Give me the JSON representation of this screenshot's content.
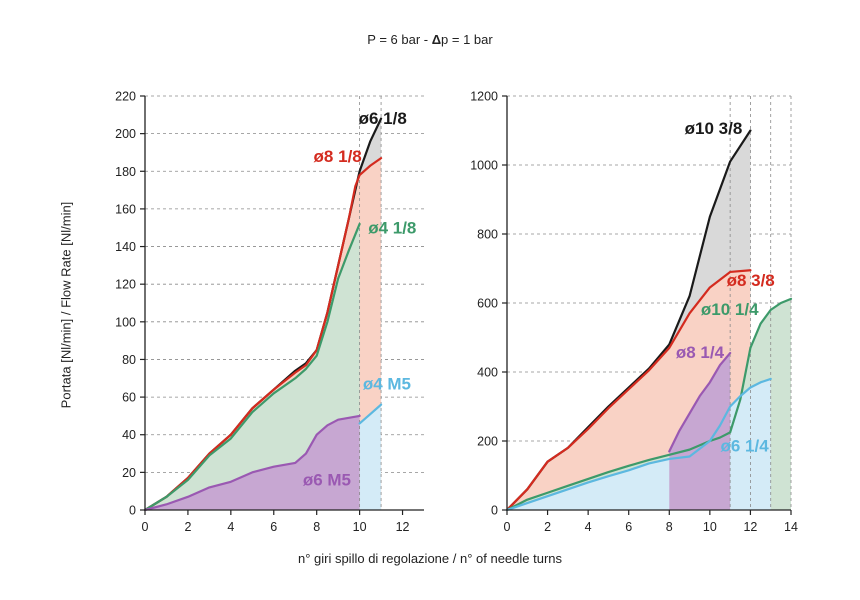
{
  "header": {
    "pressure": "P = 6 bar - ",
    "delta_symbol": "Δ",
    "delta_rest": "p = 1 bar"
  },
  "ylabel": "Portata [Nl/min] / Flow Rate [Nl/min]",
  "xlabel": "n° giri spillo di regolazione / n° of needle turns",
  "chart_data": [
    {
      "type": "area",
      "xlim": [
        0,
        13
      ],
      "ylim": [
        0,
        220
      ],
      "x_ticks": [
        0,
        2,
        4,
        6,
        8,
        10,
        12
      ],
      "y_ticks": [
        0,
        20,
        40,
        60,
        80,
        100,
        120,
        140,
        160,
        180,
        200,
        220
      ],
      "vlines": [
        10,
        11
      ],
      "grid": "horizontal dashed",
      "series": [
        {
          "name": "ø6 1/8",
          "color": "#1a1a1a",
          "fill": "#d9d9d9",
          "points": [
            [
              0,
              0
            ],
            [
              1,
              7
            ],
            [
              2,
              17
            ],
            [
              3,
              30
            ],
            [
              4,
              40
            ],
            [
              5,
              54
            ],
            [
              6,
              64
            ],
            [
              7,
              74
            ],
            [
              7.5,
              78
            ],
            [
              8,
              85
            ],
            [
              8.5,
              105
            ],
            [
              9,
              130
            ],
            [
              9.5,
              155
            ],
            [
              10,
              180
            ],
            [
              10.5,
              196
            ],
            [
              11,
              208
            ]
          ]
        },
        {
          "name": "ø8 1/8",
          "color": "#d42b1f",
          "fill": "#f9d2c5",
          "points": [
            [
              0,
              0
            ],
            [
              1,
              7
            ],
            [
              2,
              17
            ],
            [
              3,
              30
            ],
            [
              4,
              40
            ],
            [
              5,
              54
            ],
            [
              6,
              64
            ],
            [
              7,
              73
            ],
            [
              7.5,
              77
            ],
            [
              8,
              85
            ],
            [
              8.5,
              105
            ],
            [
              9,
              130
            ],
            [
              9.5,
              155
            ],
            [
              9.8,
              172
            ],
            [
              10,
              178
            ],
            [
              10.5,
              183
            ],
            [
              11,
              187
            ]
          ]
        },
        {
          "name": "ø4 1/8",
          "color": "#3d9a6a",
          "fill": "#cfe3d3",
          "points": [
            [
              0,
              0
            ],
            [
              1,
              7
            ],
            [
              2,
              16
            ],
            [
              3,
              29
            ],
            [
              4,
              38
            ],
            [
              5,
              52
            ],
            [
              6,
              62
            ],
            [
              7,
              70
            ],
            [
              7.5,
              75
            ],
            [
              8,
              82
            ],
            [
              8.5,
              100
            ],
            [
              9,
              123
            ],
            [
              9.5,
              138
            ],
            [
              10,
              152
            ]
          ]
        },
        {
          "name": "ø4 M5",
          "color": "#5cb8e0",
          "fill": "#d4ebf7",
          "points": [
            [
              10,
              46
            ],
            [
              10.5,
              51
            ],
            [
              11,
              56
            ]
          ]
        },
        {
          "name": "ø6 M5",
          "color": "#9a59b2",
          "fill": "#c7a7d2",
          "points": [
            [
              0,
              0
            ],
            [
              1,
              3
            ],
            [
              2,
              7
            ],
            [
              3,
              12
            ],
            [
              4,
              15
            ],
            [
              5,
              20
            ],
            [
              6,
              23
            ],
            [
              7,
              25
            ],
            [
              7.5,
              30
            ],
            [
              8,
              40
            ],
            [
              8.5,
              45
            ],
            [
              9,
              48
            ],
            [
              9.5,
              49
            ],
            [
              10,
              50
            ]
          ]
        }
      ]
    },
    {
      "type": "area",
      "xlim": [
        0,
        14
      ],
      "ylim": [
        0,
        1200
      ],
      "x_ticks": [
        0,
        2,
        4,
        6,
        8,
        10,
        12,
        14
      ],
      "y_ticks": [
        0,
        200,
        400,
        600,
        800,
        1000,
        1200
      ],
      "vlines": [
        11,
        12,
        13,
        14
      ],
      "grid": "horizontal dashed",
      "series": [
        {
          "name": "ø10 3/8",
          "color": "#1a1a1a",
          "fill": "#d9d9d9",
          "points": [
            [
              0,
              0
            ],
            [
              1,
              60
            ],
            [
              2,
              140
            ],
            [
              3,
              180
            ],
            [
              4,
              240
            ],
            [
              5,
              300
            ],
            [
              6,
              355
            ],
            [
              7,
              410
            ],
            [
              8,
              480
            ],
            [
              9,
              620
            ],
            [
              10,
              850
            ],
            [
              11,
              1010
            ],
            [
              12,
              1100
            ]
          ]
        },
        {
          "name": "ø8 3/8",
          "color": "#d42b1f",
          "fill": "#f9d2c5",
          "points": [
            [
              0,
              0
            ],
            [
              1,
              60
            ],
            [
              2,
              140
            ],
            [
              3,
              180
            ],
            [
              4,
              235
            ],
            [
              5,
              295
            ],
            [
              6,
              350
            ],
            [
              7,
              405
            ],
            [
              8,
              470
            ],
            [
              9,
              570
            ],
            [
              10,
              645
            ],
            [
              11,
              690
            ],
            [
              12,
              695
            ]
          ]
        },
        {
          "name": "ø10 1/4",
          "color": "#3d9a6a",
          "fill": "#cfe3d3",
          "points": [
            [
              0,
              0
            ],
            [
              1,
              30
            ],
            [
              2,
              50
            ],
            [
              3,
              70
            ],
            [
              4,
              90
            ],
            [
              5,
              110
            ],
            [
              6,
              128
            ],
            [
              7,
              145
            ],
            [
              8,
              160
            ],
            [
              9,
              175
            ],
            [
              10,
              200
            ],
            [
              10.5,
              210
            ],
            [
              11,
              225
            ],
            [
              11.5,
              320
            ],
            [
              12,
              470
            ],
            [
              12.5,
              540
            ],
            [
              13,
              580
            ],
            [
              13.5,
              600
            ],
            [
              14,
              612
            ]
          ]
        },
        {
          "name": "ø8 1/4",
          "color": "#9a59b2",
          "fill": "#c7a7d2",
          "points": [
            [
              8,
              170
            ],
            [
              8.5,
              230
            ],
            [
              9,
              280
            ],
            [
              9.5,
              330
            ],
            [
              10,
              370
            ],
            [
              10.5,
              420
            ],
            [
              11,
              455
            ]
          ]
        },
        {
          "name": "ø6 1/4",
          "color": "#5cb8e0",
          "fill": "#d4ebf7",
          "points": [
            [
              0,
              0
            ],
            [
              1,
              20
            ],
            [
              2,
              40
            ],
            [
              3,
              60
            ],
            [
              4,
              80
            ],
            [
              5,
              98
            ],
            [
              6,
              115
            ],
            [
              7,
              135
            ],
            [
              8,
              148
            ],
            [
              9,
              155
            ],
            [
              10,
              200
            ],
            [
              10.5,
              245
            ],
            [
              11,
              300
            ],
            [
              11.5,
              330
            ],
            [
              12,
              355
            ],
            [
              12.5,
              370
            ],
            [
              13,
              380
            ]
          ]
        }
      ]
    }
  ]
}
